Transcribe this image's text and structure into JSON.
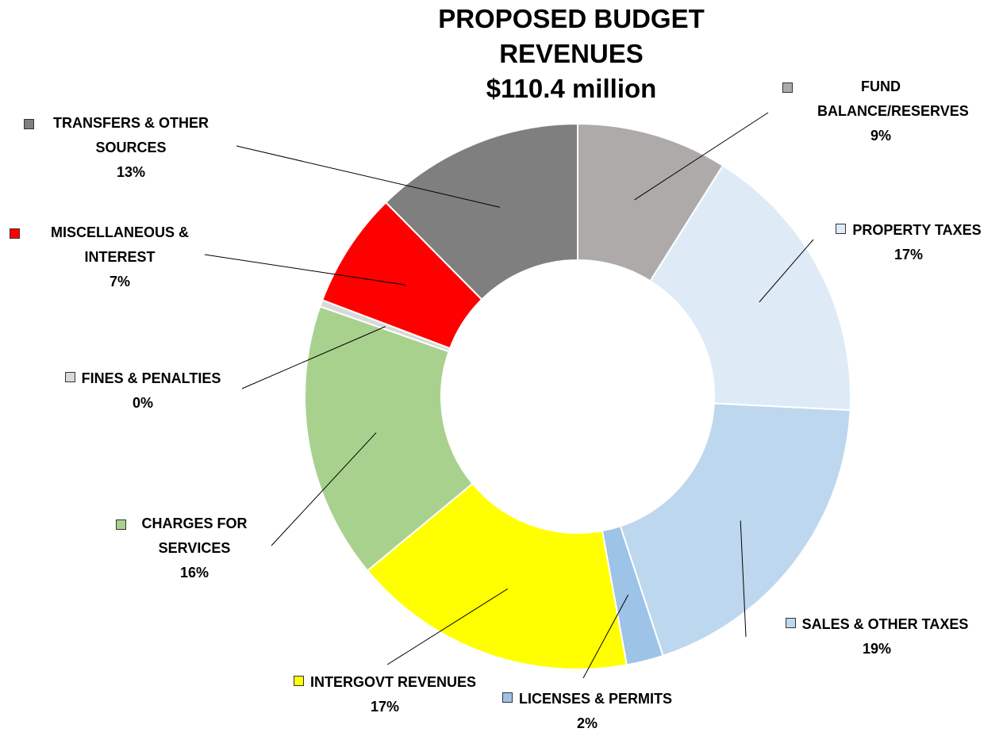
{
  "chart_data": {
    "type": "pie",
    "donut": true,
    "title_lines": [
      "PROPOSED BUDGET",
      "REVENUES",
      "$110.4 million"
    ],
    "slices": [
      {
        "label": "FUND BALANCE/RESERVES",
        "pct_label": "9%",
        "value": 9,
        "color": "#aeaaaa"
      },
      {
        "label": "PROPERTY TAXES",
        "pct_label": "17%",
        "value": 17,
        "color": "#deebf7"
      },
      {
        "label": "SALES  & OTHER TAXES",
        "pct_label": "19%",
        "value": 19.3,
        "color": "#bdd7ee"
      },
      {
        "label": "LICENSES & PERMITS",
        "pct_label": "2%",
        "value": 2.2,
        "color": "#9dc3e6"
      },
      {
        "label": "INTERGOVT REVENUES",
        "pct_label": "17%",
        "value": 17,
        "color": "#ffff00"
      },
      {
        "label": "CHARGES FOR SERVICES",
        "pct_label": "16%",
        "value": 16.5,
        "color": "#a9d18e"
      },
      {
        "label": "FINES & PENALTIES",
        "pct_label": "0%",
        "value": 0.4,
        "color": "#d9d9d9"
      },
      {
        "label": "MISCELLANEOUS & INTEREST",
        "pct_label": "7%",
        "value": 6.9,
        "color": "#ff0000"
      },
      {
        "label": "TRANSFERS & OTHER SOURCES",
        "pct_label": "13%",
        "value": 12.5,
        "color": "#7f7f7f"
      }
    ],
    "legend": "labels-with-leader-lines"
  }
}
